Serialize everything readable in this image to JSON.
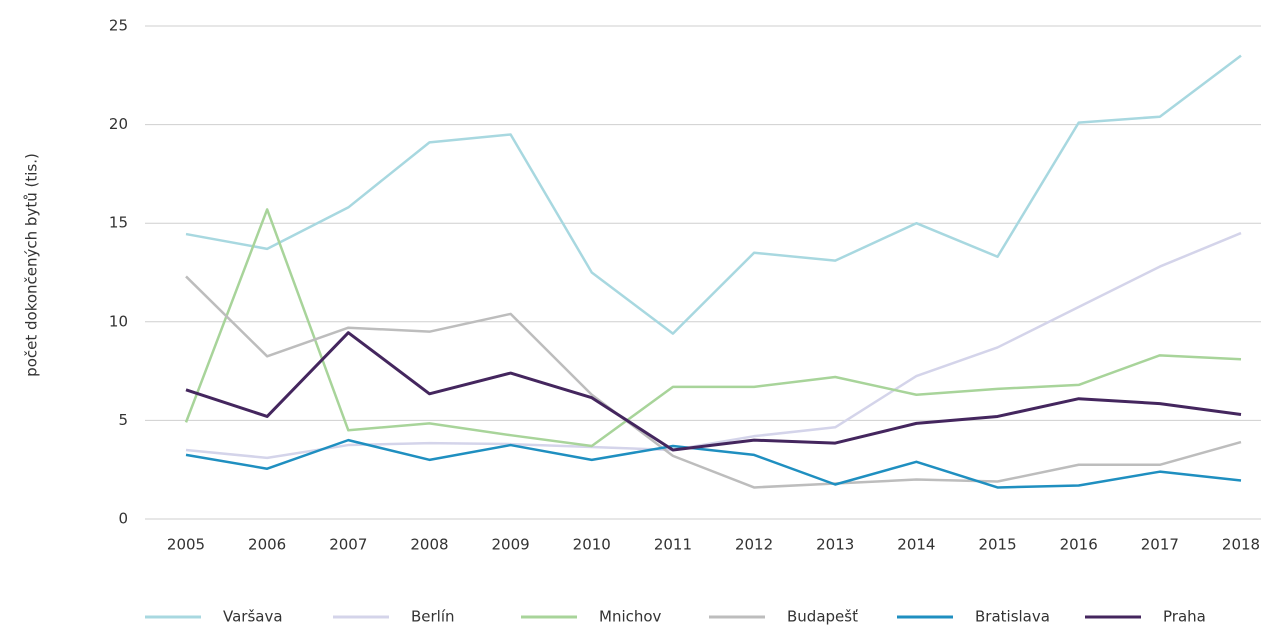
{
  "chart_data": {
    "type": "line",
    "y_label": "počet dokončených bytů (tis.)",
    "categories": [
      "2005",
      "2006",
      "2007",
      "2008",
      "2009",
      "2010",
      "2011",
      "2012",
      "2013",
      "2014",
      "2015",
      "2016",
      "2017",
      "2018"
    ],
    "series": [
      {
        "name": "Varšava",
        "color": "#a8d8e0",
        "values": [
          14.45,
          13.7,
          15.8,
          19.1,
          19.5,
          12.5,
          9.4,
          13.5,
          13.1,
          15.0,
          13.3,
          20.1,
          20.4,
          23.5
        ]
      },
      {
        "name": "Berlín",
        "color": "#d4d4ea",
        "values": [
          3.5,
          3.1,
          3.75,
          3.85,
          3.8,
          3.65,
          3.5,
          4.2,
          4.65,
          7.25,
          8.7,
          10.75,
          12.8,
          14.5
        ]
      },
      {
        "name": "Mnichov",
        "color": "#a8d49a",
        "values": [
          4.9,
          15.7,
          4.5,
          4.85,
          4.25,
          3.7,
          6.7,
          6.7,
          7.2,
          6.3,
          6.6,
          6.8,
          8.3,
          8.1
        ]
      },
      {
        "name": "Budapešť",
        "color": "#bdbdbd",
        "values": [
          12.3,
          8.25,
          9.7,
          9.5,
          10.4,
          6.3,
          3.2,
          1.6,
          1.8,
          2.0,
          1.9,
          2.75,
          2.75,
          3.9
        ]
      },
      {
        "name": "Bratislava",
        "color": "#1f8fc0",
        "values": [
          3.25,
          2.55,
          4.0,
          3.0,
          3.75,
          3.0,
          3.7,
          3.25,
          1.75,
          2.9,
          1.6,
          1.7,
          2.4,
          1.95
        ]
      },
      {
        "name": "Praha",
        "color": "#44265e",
        "values": [
          6.55,
          5.2,
          9.45,
          6.35,
          7.4,
          6.15,
          3.5,
          4.0,
          3.85,
          4.85,
          5.2,
          6.1,
          5.85,
          5.3
        ]
      }
    ],
    "ylim": [
      0,
      25
    ],
    "yticks": [
      0,
      5,
      10,
      15,
      20,
      25
    ],
    "grid": true,
    "legend": "bottom"
  }
}
